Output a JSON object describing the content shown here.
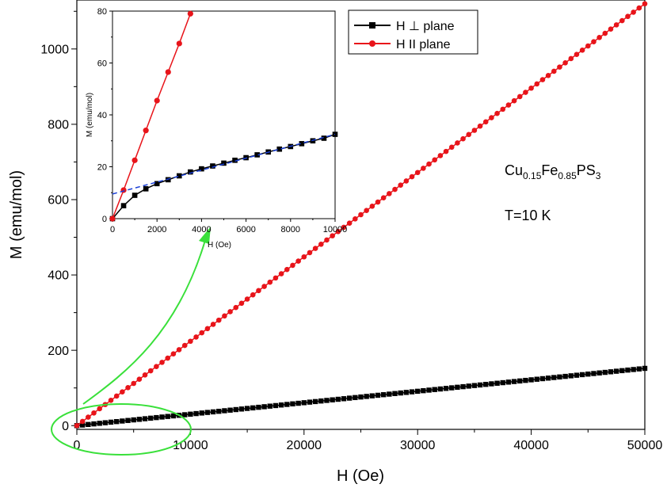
{
  "chart_data": [
    {
      "type": "scatter",
      "xlabel": "H (Oe)",
      "ylabel": "M (emu/mol)",
      "xlim": [
        0,
        50000
      ],
      "ylim": [
        -10,
        1130
      ],
      "x_ticks": [
        0,
        10000,
        20000,
        30000,
        40000,
        50000
      ],
      "y_ticks": [
        0,
        200,
        400,
        600,
        800,
        1000
      ],
      "grid": false,
      "legend_position": "top-right",
      "series": [
        {
          "name": "H ⊥ plane",
          "color": "#000000",
          "marker": "square",
          "x_start": 0,
          "x_step": 500,
          "x_end": 50000,
          "y_at_start": 0,
          "y_at_end": 152
        },
        {
          "name": "H II plane",
          "color": "#e8141a",
          "marker": "circle",
          "x_start": 0,
          "x_step": 500,
          "x_end": 50000,
          "y_at_start": 0,
          "y_at_end": 1120
        }
      ],
      "annotations": {
        "compound": {
          "base1": "Cu",
          "sub1": "0.15",
          "base2": "Fe",
          "sub2": "0.85",
          "base3": "PS",
          "sub3": "3"
        },
        "temperature": "T=10 K"
      }
    },
    {
      "type": "scatter",
      "xlabel": "H (Oe)",
      "ylabel": "M (emu/mol)",
      "xlim": [
        0,
        10000
      ],
      "ylim": [
        0,
        80
      ],
      "x_ticks": [
        0,
        2000,
        4000,
        6000,
        8000,
        10000
      ],
      "y_ticks": [
        0,
        20,
        40,
        60,
        80
      ],
      "series": [
        {
          "name": "H ⊥ plane",
          "color": "#000000",
          "marker": "square",
          "x": [
            0,
            500,
            1000,
            1500,
            2000,
            2500,
            3000,
            3500,
            4000,
            4500,
            5000,
            5500,
            6000,
            6500,
            7000,
            7500,
            8000,
            8500,
            9000,
            9500,
            10000
          ],
          "y": [
            0,
            5,
            9,
            11.5,
            13.5,
            15,
            16.5,
            18,
            19.2,
            20.3,
            21.4,
            22.5,
            23.5,
            24.6,
            25.7,
            26.8,
            27.8,
            28.9,
            30,
            31,
            32.5
          ]
        },
        {
          "name": "H II plane",
          "color": "#e8141a",
          "marker": "circle",
          "x": [
            0,
            500,
            1000,
            1500,
            2000,
            2500,
            3000,
            3500
          ],
          "y": [
            0,
            11,
            22.5,
            34,
            45.5,
            56.5,
            67.5,
            79
          ]
        },
        {
          "name": "",
          "color": "#1a3fd6",
          "style": "dashed",
          "x": [
            0,
            10000
          ],
          "y": [
            9.5,
            32.5
          ]
        }
      ]
    }
  ]
}
